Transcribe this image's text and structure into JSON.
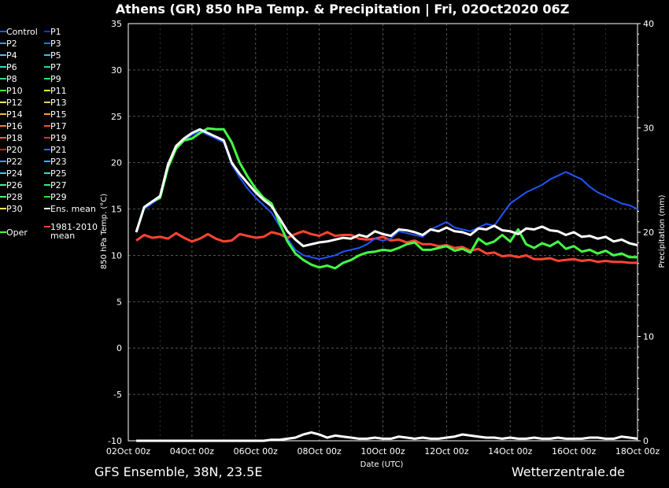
{
  "chart_data": {
    "type": "line",
    "title": "Athens  (GR)  850 hPa Temp. & Precipitation | Fri, 02Oct2020 06Z",
    "xlabel": "Date (UTC)",
    "ylabel": "850 hPa Temp. (°C)",
    "y2label": "Precipitation (mm)",
    "footer_left": "GFS Ensemble, 38N, 23.5E",
    "footer_right": "Wetterzentrale.de",
    "x_ticks": [
      "02Oct 00z",
      "04Oct 00z",
      "06Oct 00z",
      "08Oct 00z",
      "10Oct 00z",
      "12Oct 00z",
      "14Oct 00z",
      "16Oct 00z",
      "18Oct 00z"
    ],
    "ylim": [
      -10,
      35
    ],
    "y_ticks": [
      -10,
      -5,
      0,
      5,
      10,
      15,
      20,
      25,
      30,
      35
    ],
    "y2lim": [
      0,
      40
    ],
    "y2_ticks": [
      0,
      10,
      20,
      30,
      40
    ],
    "grid": true,
    "legend_placement": "left",
    "x_days": [
      0.25,
      0.5,
      0.75,
      1,
      1.25,
      1.5,
      1.75,
      2,
      2.25,
      2.5,
      2.75,
      3,
      3.25,
      3.5,
      3.75,
      4,
      4.25,
      4.5,
      4.75,
      5,
      5.25,
      5.5,
      5.75,
      6,
      6.25,
      6.5,
      6.75,
      7,
      7.25,
      7.5,
      7.75,
      8,
      8.25,
      8.5,
      8.75,
      9,
      9.25,
      9.5,
      9.75,
      10,
      10.25,
      10.5,
      10.75,
      11,
      11.25,
      11.5,
      11.75,
      12,
      12.25,
      12.5,
      12.75,
      13,
      13.25,
      13.5,
      13.75,
      14,
      14.25,
      14.5,
      14.75,
      15,
      15.25,
      15.5,
      15.75,
      16
    ],
    "colors": {
      "Control": "#2255ff",
      "P1": "#1133dd",
      "P2": "#3399ff",
      "P3": "#1177ff",
      "P4": "#55bbff",
      "P5": "#22ccdd",
      "P6": "#33ddcc",
      "P7": "#22dd99",
      "P8": "#33dd77",
      "P9": "#22ee55",
      "P10": "#44ff33",
      "P11": "#eeff33",
      "P12": "#ffee66",
      "P13": "#ffcc55",
      "P14": "#ffbb33",
      "P15": "#ff9922",
      "P16": "#ff7744",
      "P17": "#ee5533",
      "P18": "#ff6633",
      "P19": "#dd3322",
      "P20": "#cc2222",
      "P21": "#3366ff",
      "P22": "#4499ff",
      "P23": "#22bbff",
      "P24": "#44ccee",
      "P25": "#33ddbb",
      "P26": "#44ee99",
      "P27": "#33ee77",
      "P28": "#55ff66",
      "P29": "#22ee22",
      "P30": "#ffff66",
      "Ens. mean": "#ffffff",
      "Oper": "#44ff44",
      "1981-2010 mean": "#ff4433"
    },
    "legend_left": [
      "Control",
      "P2",
      "P4",
      "P6",
      "P8",
      "P10",
      "P12",
      "P14",
      "P16",
      "P18",
      "P20",
      "P22",
      "P24",
      "P26",
      "P28",
      "P30",
      "",
      "Oper"
    ],
    "legend_right": [
      "P1",
      "P3",
      "P5",
      "P7",
      "P9",
      "P11",
      "P13",
      "P15",
      "P17",
      "P19",
      "P21",
      "P23",
      "P25",
      "P27",
      "P29",
      "Ens. mean",
      "",
      "1981-2010 mean"
    ],
    "ens_mean_temp": [
      12.5,
      15.2,
      15.8,
      16.4,
      19.8,
      21.8,
      22.6,
      23.2,
      23.6,
      23.2,
      22.8,
      22.4,
      20.0,
      18.8,
      17.8,
      16.8,
      16.0,
      15.3,
      14.0,
      12.6,
      11.7,
      11.0,
      11.2,
      11.4,
      11.5,
      11.7,
      11.9,
      11.8,
      12.2,
      12.0,
      12.6,
      12.3,
      12.1,
      12.8,
      12.7,
      12.5,
      12.2,
      12.8,
      12.6,
      13.0,
      12.6,
      12.5,
      12.2,
      12.9,
      12.8,
      13.2,
      12.7,
      12.6,
      12.3,
      12.9,
      12.8,
      13.1,
      12.7,
      12.6,
      12.2,
      12.5,
      12.0,
      12.1,
      11.8,
      12.0,
      11.5,
      11.7,
      11.3,
      11.1
    ],
    "oper_temp": [
      12.5,
      15.2,
      15.8,
      16.2,
      19.5,
      21.5,
      22.4,
      22.6,
      23.2,
      23.7,
      23.6,
      23.6,
      22.2,
      20.0,
      18.5,
      17.2,
      16.2,
      15.6,
      13.5,
      11.5,
      10.2,
      9.5,
      9.0,
      8.7,
      8.9,
      8.6,
      9.2,
      9.5,
      10.0,
      10.3,
      10.4,
      10.6,
      10.5,
      10.8,
      11.2,
      11.4,
      10.6,
      10.6,
      10.8,
      11.0,
      10.5,
      10.7,
      10.3,
      11.8,
      11.2,
      11.5,
      12.2,
      11.5,
      12.8,
      11.2,
      10.8,
      11.3,
      11.0,
      11.5,
      10.7,
      11.0,
      10.4,
      10.6,
      10.2,
      10.5,
      10.0,
      10.2,
      9.8,
      9.8
    ],
    "control_temp": [
      12.5,
      15.0,
      15.6,
      16.2,
      19.6,
      21.6,
      22.4,
      23.0,
      23.4,
      23.0,
      22.6,
      22.2,
      19.8,
      18.4,
      17.2,
      16.2,
      15.4,
      14.6,
      13.2,
      11.8,
      10.6,
      10.0,
      9.8,
      9.6,
      9.8,
      10.0,
      10.4,
      10.6,
      10.8,
      11.2,
      11.8,
      11.6,
      11.8,
      12.6,
      12.4,
      12.2,
      12.0,
      12.8,
      13.2,
      13.6,
      13.0,
      12.8,
      12.6,
      13.0,
      13.4,
      13.2,
      14.4,
      15.6,
      16.2,
      16.8,
      17.2,
      17.6,
      18.2,
      18.6,
      19.0,
      18.6,
      18.2,
      17.4,
      16.8,
      16.4,
      16.0,
      15.6,
      15.4,
      15.0
    ],
    "clim_mean_temp": [
      11.6,
      12.2,
      11.9,
      12.0,
      11.8,
      12.4,
      11.9,
      11.5,
      11.8,
      12.3,
      11.8,
      11.5,
      11.6,
      12.3,
      12.1,
      11.9,
      12.0,
      12.5,
      12.3,
      11.9,
      12.3,
      12.6,
      12.3,
      12.1,
      12.5,
      12.1,
      12.2,
      12.2,
      11.8,
      11.7,
      11.8,
      12.0,
      11.6,
      11.7,
      11.4,
      11.6,
      11.2,
      11.2,
      11.0,
      11.1,
      10.8,
      10.9,
      10.5,
      10.7,
      10.2,
      10.3,
      9.9,
      10.0,
      9.8,
      10.0,
      9.6,
      9.6,
      9.7,
      9.4,
      9.5,
      9.6,
      9.4,
      9.5,
      9.3,
      9.4,
      9.3,
      9.3,
      9.2,
      9.2
    ],
    "ens_mean_precip_mm": [
      0,
      0,
      0,
      0,
      0,
      0,
      0,
      0,
      0,
      0,
      0,
      0,
      0,
      0,
      0,
      0,
      0,
      0.1,
      0.1,
      0.2,
      0.3,
      0.6,
      0.8,
      0.6,
      0.3,
      0.5,
      0.4,
      0.3,
      0.2,
      0.2,
      0.3,
      0.2,
      0.2,
      0.4,
      0.3,
      0.2,
      0.3,
      0.2,
      0.2,
      0.3,
      0.4,
      0.6,
      0.5,
      0.4,
      0.3,
      0.3,
      0.2,
      0.3,
      0.2,
      0.2,
      0.3,
      0.2,
      0.2,
      0.3,
      0.2,
      0.2,
      0.2,
      0.3,
      0.3,
      0.2,
      0.2,
      0.4,
      0.3,
      0.2
    ]
  }
}
